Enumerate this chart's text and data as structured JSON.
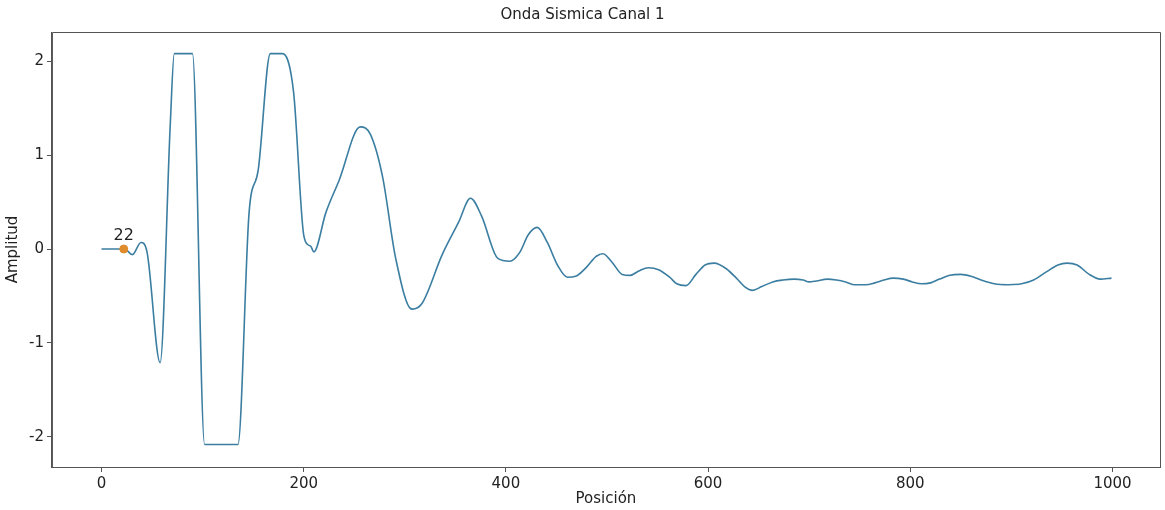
{
  "chart_data": {
    "type": "line",
    "title": "Onda Sismica Canal 1",
    "xlabel": "Posición",
    "ylabel": "Amplitud",
    "xlim": [
      -49,
      1047
    ],
    "xticks": [
      0,
      200,
      400,
      600,
      800,
      1000
    ],
    "ylim": [
      -2.32,
      2.31
    ],
    "yticks": [
      -2,
      -1,
      0,
      1,
      2
    ],
    "series": [
      {
        "color": "#3b7ea1",
        "marker": "none",
        "x": [
          0,
          21,
          23,
          30.5,
          39,
          45,
          58,
          68,
          72,
          90,
          102,
          135,
          146,
          155,
          167,
          179,
          190,
          200,
          205,
          207,
          210,
          222,
          235,
          256,
          266,
          278,
          291,
          307,
          317,
          337,
          353,
          365,
          376,
          392,
          404,
          414,
          422,
          431,
          441,
          451,
          461,
          469,
          480,
          489,
          496,
          505,
          515,
          523,
          532,
          541,
          551,
          562,
          569,
          578,
          588,
          597,
          606,
          618,
          628,
          636,
          644,
          653,
          664,
          674,
          685,
          694,
          700,
          707,
          718,
          727,
          736,
          745,
          756,
          765,
          774,
          783,
          793,
          802,
          811,
          820,
          829,
          839,
          850,
          860,
          870,
          883,
          897,
          910,
          922,
          935,
          946,
          955,
          965,
          977,
          988,
          999
        ],
        "values": [
          0,
          0,
          0,
          -0.06,
          0.07,
          -0.03,
          -1.21,
          1.32,
          2.08,
          2.08,
          -2.08,
          -2.08,
          0.39,
          0.84,
          2.08,
          2.08,
          1.67,
          0.15,
          0.04,
          0.03,
          -0.03,
          0.39,
          0.73,
          1.3,
          1.22,
          0.77,
          -0.1,
          -0.64,
          -0.58,
          -0.06,
          0.28,
          0.54,
          0.35,
          -0.1,
          -0.13,
          -0.03,
          0.15,
          0.23,
          0.07,
          -0.17,
          -0.3,
          -0.29,
          -0.19,
          -0.08,
          -0.05,
          -0.14,
          -0.27,
          -0.28,
          -0.23,
          -0.2,
          -0.22,
          -0.3,
          -0.37,
          -0.39,
          -0.27,
          -0.17,
          -0.15,
          -0.21,
          -0.31,
          -0.4,
          -0.44,
          -0.4,
          -0.35,
          -0.33,
          -0.32,
          -0.33,
          -0.35,
          -0.34,
          -0.32,
          -0.33,
          -0.35,
          -0.38,
          -0.38,
          -0.36,
          -0.33,
          -0.31,
          -0.32,
          -0.35,
          -0.37,
          -0.36,
          -0.32,
          -0.28,
          -0.27,
          -0.29,
          -0.33,
          -0.37,
          -0.38,
          -0.37,
          -0.33,
          -0.24,
          -0.17,
          -0.15,
          -0.17,
          -0.27,
          -0.32,
          -0.31
        ]
      },
      {
        "type": "scatter",
        "color": "#e08b2c",
        "marker": "circle",
        "x": [
          22
        ],
        "values": [
          0
        ]
      }
    ],
    "annotations": [
      {
        "text": "22",
        "x": 22,
        "y": 0
      }
    ]
  }
}
